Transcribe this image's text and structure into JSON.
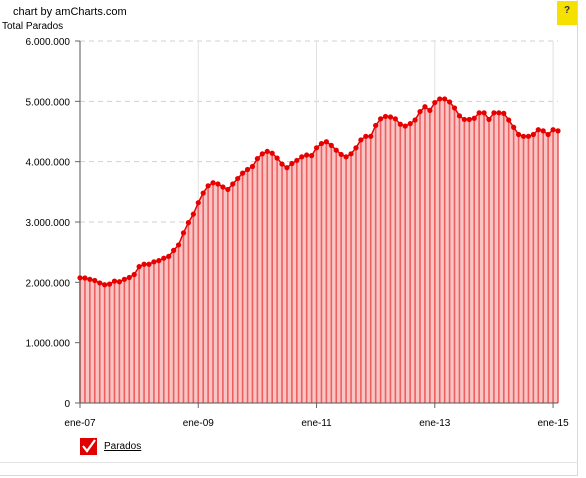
{
  "credit": "chart by amCharts.com",
  "help_label": "?",
  "chart_data": {
    "type": "area",
    "ylabel": "Total Parados",
    "ylim": [
      0,
      6000000
    ],
    "yticks": [
      0,
      1000000,
      2000000,
      3000000,
      4000000,
      5000000,
      6000000
    ],
    "ytick_labels": [
      "0",
      "1.000.000",
      "2.000.000",
      "3.000.000",
      "4.000.000",
      "5.000.000",
      "6.000.000"
    ],
    "x_start": "ene-07",
    "x_end": "ene-15",
    "xtick_labels": [
      "ene-07",
      "ene-09",
      "ene-11",
      "ene-13",
      "ene-15"
    ],
    "grid": true,
    "legend_position": "bottom-left",
    "series": [
      {
        "name": "Parados",
        "color": "#e80000",
        "fill": "#f26b6b",
        "values": [
          2074380,
          2071873,
          2050000,
          2030000,
          1990000,
          1960000,
          1970000,
          2020000,
          2010000,
          2050000,
          2080000,
          2130000,
          2260000,
          2300000,
          2300000,
          2340000,
          2360000,
          2400000,
          2430000,
          2530000,
          2620000,
          2820000,
          2990000,
          3130000,
          3320000,
          3480000,
          3600000,
          3650000,
          3630000,
          3580000,
          3540000,
          3630000,
          3720000,
          3810000,
          3870000,
          3920000,
          4050000,
          4130000,
          4170000,
          4140000,
          4060000,
          3960000,
          3900000,
          3970000,
          4020000,
          4080000,
          4110000,
          4100000,
          4230000,
          4300000,
          4330000,
          4270000,
          4190000,
          4120000,
          4080000,
          4130000,
          4230000,
          4360000,
          4420000,
          4420000,
          4600000,
          4710000,
          4750000,
          4740000,
          4710000,
          4620000,
          4590000,
          4630000,
          4690000,
          4830000,
          4910000,
          4850000,
          4980000,
          5040000,
          5040000,
          4990000,
          4890000,
          4760000,
          4700000,
          4700000,
          4720000,
          4810000,
          4810000,
          4700000,
          4810000,
          4810000,
          4800000,
          4690000,
          4570000,
          4450000,
          4420000,
          4420000,
          4450000,
          4530000,
          4510000,
          4450000,
          4530000,
          4510000
        ]
      }
    ]
  },
  "legend": {
    "label": "Parados"
  }
}
